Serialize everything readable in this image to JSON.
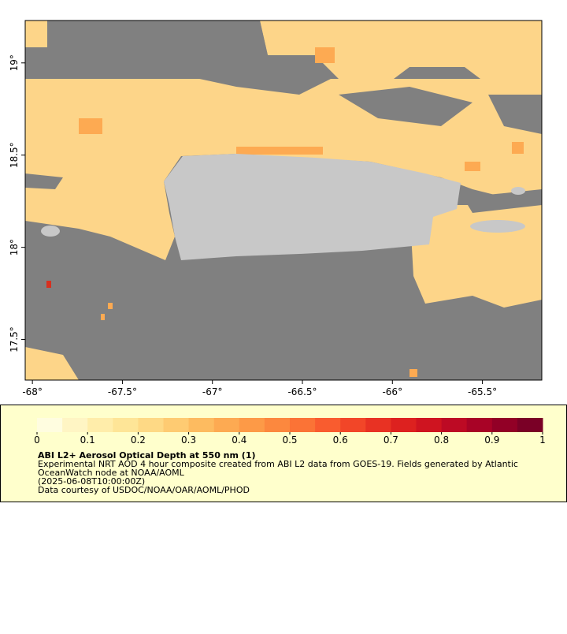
{
  "map": {
    "xlim": [
      -68.04,
      -65.17
    ],
    "ylim": [
      17.28,
      19.23
    ],
    "xticks": [
      {
        "value": -68,
        "label": "-68°"
      },
      {
        "value": -67.5,
        "label": "-67.5°"
      },
      {
        "value": -67,
        "label": "-67°"
      },
      {
        "value": -66.5,
        "label": "-66.5°"
      },
      {
        "value": -66,
        "label": "-66°"
      },
      {
        "value": -65.5,
        "label": "-65.5°"
      }
    ],
    "yticks": [
      {
        "value": 17.5,
        "label": "17.5°"
      },
      {
        "value": 18,
        "label": "18°"
      },
      {
        "value": 18.5,
        "label": "18.5°"
      },
      {
        "value": 19,
        "label": "19°"
      }
    ]
  },
  "colorbar": {
    "lim": [
      0,
      1
    ],
    "ticks": [
      0,
      0.1,
      0.2,
      0.3,
      0.4,
      0.5,
      0.6,
      0.7,
      0.8,
      0.9,
      1
    ],
    "colors": [
      "#fffde0",
      "#fff5c4",
      "#ffedaa",
      "#fee597",
      "#fed985",
      "#fecb72",
      "#fdbb60",
      "#fdaa52",
      "#fd9a47",
      "#fc883e",
      "#fb7336",
      "#f95c2f",
      "#f24628",
      "#e83223",
      "#dd211f",
      "#cf1420",
      "#bd0a24",
      "#a80326",
      "#920026",
      "#7a0026"
    ]
  },
  "caption": {
    "title": "ABI L2+ Aerosol Optical Depth at 550 nm (1)",
    "lines": [
      "Experimental NRT AOD 4 hour composite created from ABI L2 data from GOES-19. Fields generated by Atlantic",
      "OceanWatch node at NOAA/AOML",
      "(2025-06-08T10:00:00Z)",
      "Data courtesy of USDOC/NOAA/OAR/AOML/PHOD"
    ]
  }
}
